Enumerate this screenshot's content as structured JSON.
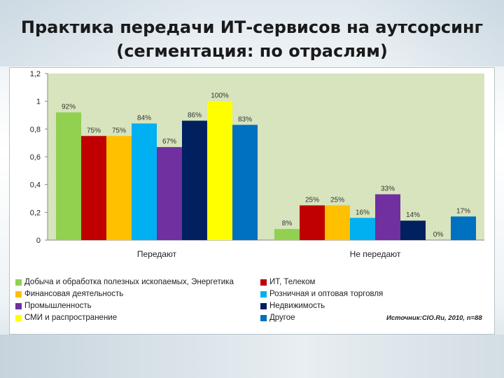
{
  "title": "Практика передачи ИТ-сервисов на аутсорсинг (сегментация: по отраслям)",
  "source": "Источник:CIO.Ru, 2010, n=88",
  "chart_data": {
    "type": "bar",
    "categories": [
      "Передают",
      "Не передают"
    ],
    "ylim": [
      0,
      1.2
    ],
    "yticks": [
      "0",
      "0,2",
      "0,4",
      "0,6",
      "0,8",
      "1",
      "1,2"
    ],
    "ytick_values": [
      0,
      0.2,
      0.4,
      0.6,
      0.8,
      1.0,
      1.2
    ],
    "grid": false,
    "legend_position": "bottom",
    "series": [
      {
        "name": "Добыча и обработка полезных ископаемых, Энергетика",
        "color": "#92d050",
        "values": [
          0.92,
          0.08
        ],
        "labels": [
          "92%",
          "8%"
        ]
      },
      {
        "name": "ИТ, Телеком",
        "color": "#c00000",
        "values": [
          0.75,
          0.25
        ],
        "labels": [
          "75%",
          "25%"
        ]
      },
      {
        "name": "Финансовая деятельность",
        "color": "#ffc000",
        "values": [
          0.75,
          0.25
        ],
        "labels": [
          "75%",
          "25%"
        ]
      },
      {
        "name": "Розничная и оптовая торговля",
        "color": "#00b0f0",
        "values": [
          0.84,
          0.16
        ],
        "labels": [
          "84%",
          "16%"
        ]
      },
      {
        "name": "Промышленность",
        "color": "#7030a0",
        "values": [
          0.67,
          0.33
        ],
        "labels": [
          "67%",
          "33%"
        ]
      },
      {
        "name": "Недвижимость",
        "color": "#002060",
        "values": [
          0.86,
          0.14
        ],
        "labels": [
          "86%",
          "14%"
        ]
      },
      {
        "name": "СМИ и распространение",
        "color": "#ffff00",
        "values": [
          1.0,
          0.0
        ],
        "labels": [
          "100%",
          "0%"
        ]
      },
      {
        "name": "Другое",
        "color": "#0070c0",
        "values": [
          0.83,
          0.17
        ],
        "labels": [
          "83%",
          "17%"
        ]
      }
    ],
    "legend_order": [
      0,
      1,
      2,
      3,
      4,
      5,
      6,
      7
    ]
  }
}
